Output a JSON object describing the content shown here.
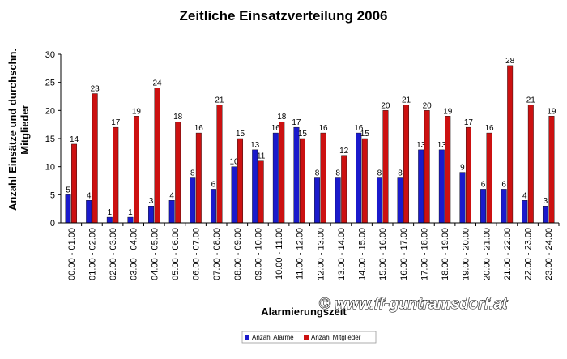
{
  "chart_data": {
    "type": "bar",
    "title": "Zeitliche Einsatzverteilung 2006",
    "xlabel": "Alarmierungszeit",
    "ylabel_line1": "Anzahl Einsätze und durchschn.",
    "ylabel_line2": "Mitglieder",
    "ylim": [
      0,
      30
    ],
    "yticks": [
      0,
      5,
      10,
      15,
      20,
      25,
      30
    ],
    "grid": false,
    "legend_position": "bottom",
    "categories": [
      "00.00 - 01.00",
      "01.00 - 02.00",
      "02.00 - 03.00",
      "03.00 - 04.00",
      "04.00 - 05.00",
      "05.00 - 06.00",
      "06.00 - 07.00",
      "07.00 - 08.00",
      "08.00 - 09.00",
      "09.00 - 10.00",
      "10.00 - 11.00",
      "11.00 - 12.00",
      "12.00 - 13.00",
      "13.00 - 14.00",
      "14.00 - 15.00",
      "15.00 - 16.00",
      "16.00 - 17.00",
      "17.00 - 18.00",
      "18.00 - 19.00",
      "19.00 - 20.00",
      "20.00 - 21.00",
      "21.00 - 22.00",
      "22.00 - 23.00",
      "23.00 - 24.00"
    ],
    "series": [
      {
        "name": "Anzahl Alarme",
        "color": "#1a1acc",
        "values": [
          5,
          4,
          1,
          1,
          3,
          4,
          8,
          6,
          10,
          13,
          16,
          17,
          8,
          8,
          16,
          8,
          8,
          13,
          13,
          9,
          6,
          6,
          4,
          3
        ]
      },
      {
        "name": "Anzahl Mitglieder",
        "color": "#cc1111",
        "values": [
          14,
          23,
          17,
          19,
          24,
          18,
          16,
          21,
          15,
          11,
          18,
          15,
          16,
          12,
          15,
          20,
          21,
          20,
          19,
          17,
          16,
          28,
          21,
          19
        ]
      }
    ]
  },
  "watermark": "© www.ff-guntramsdorf.at"
}
